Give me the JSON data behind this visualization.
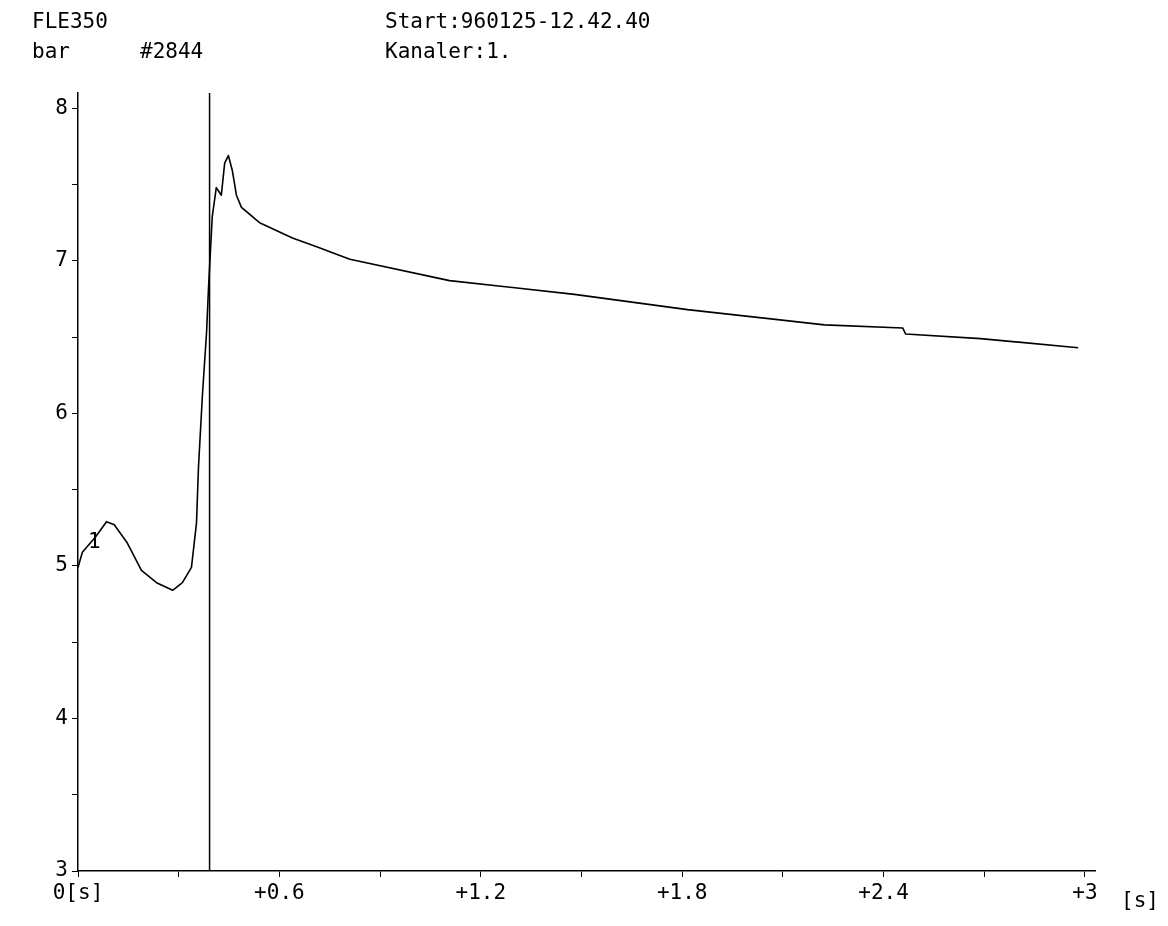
{
  "chart_data": {
    "type": "line",
    "title": "FLE350",
    "xlabel": "[s]",
    "ylabel": "bar",
    "annotations": [
      "#2844",
      "Start:960125-12.42.40",
      "Kanaler:1.",
      {
        "text": "1",
        "x": 0.03,
        "y": 5.15
      }
    ],
    "x": [
      0,
      0.013,
      0.052,
      0.085,
      0.108,
      0.147,
      0.189,
      0.234,
      0.282,
      0.311,
      0.338,
      0.353,
      0.359,
      0.371,
      0.383,
      0.389,
      0.4,
      0.412,
      0.427,
      0.437,
      0.448,
      0.46,
      0.472,
      0.487,
      0.541,
      0.639,
      0.713,
      0.81,
      1.107,
      1.479,
      1.816,
      2.224,
      2.457,
      2.466,
      2.689,
      2.98
    ],
    "series": [
      {
        "color": "#000000",
        "values": [
          4.99,
          5.09,
          5.19,
          5.29,
          5.27,
          5.15,
          4.97,
          4.89,
          4.84,
          4.89,
          4.99,
          5.28,
          5.65,
          6.13,
          6.53,
          6.83,
          7.29,
          7.48,
          7.43,
          7.64,
          7.69,
          7.59,
          7.43,
          7.35,
          7.25,
          7.15,
          7.09,
          7.01,
          6.87,
          6.78,
          6.68,
          6.58,
          6.56,
          6.52,
          6.49,
          6.43
        ]
      }
    ],
    "xlim": [
      0,
      3.03
    ],
    "ylim": [
      3,
      8.1
    ],
    "xticks": [
      {
        "value": 0,
        "label": "0[s]"
      },
      {
        "value": 0.3,
        "label": null
      },
      {
        "value": 0.6,
        "label": "+0.6"
      },
      {
        "value": 0.9,
        "label": null
      },
      {
        "value": 1.2,
        "label": "+1.2"
      },
      {
        "value": 1.5,
        "label": null
      },
      {
        "value": 1.8,
        "label": "+1.8"
      },
      {
        "value": 2.1,
        "label": null
      },
      {
        "value": 2.4,
        "label": "+2.4"
      },
      {
        "value": 2.7,
        "label": null
      },
      {
        "value": 3,
        "label": "+3"
      }
    ],
    "yticks": [
      3,
      {
        "value": 3.5,
        "label": null
      },
      4,
      {
        "value": 4.5,
        "label": null
      },
      5,
      {
        "value": 5.5,
        "label": null
      },
      6,
      {
        "value": 6.5,
        "label": null
      },
      7,
      {
        "value": 7.5,
        "label": null
      },
      8
    ],
    "ref_lines": [
      {
        "axis": "x",
        "value": 0.392,
        "label": null,
        "color": "#000000"
      }
    ],
    "grid": false,
    "legend": false,
    "marker": "none",
    "line_style": "solid"
  }
}
